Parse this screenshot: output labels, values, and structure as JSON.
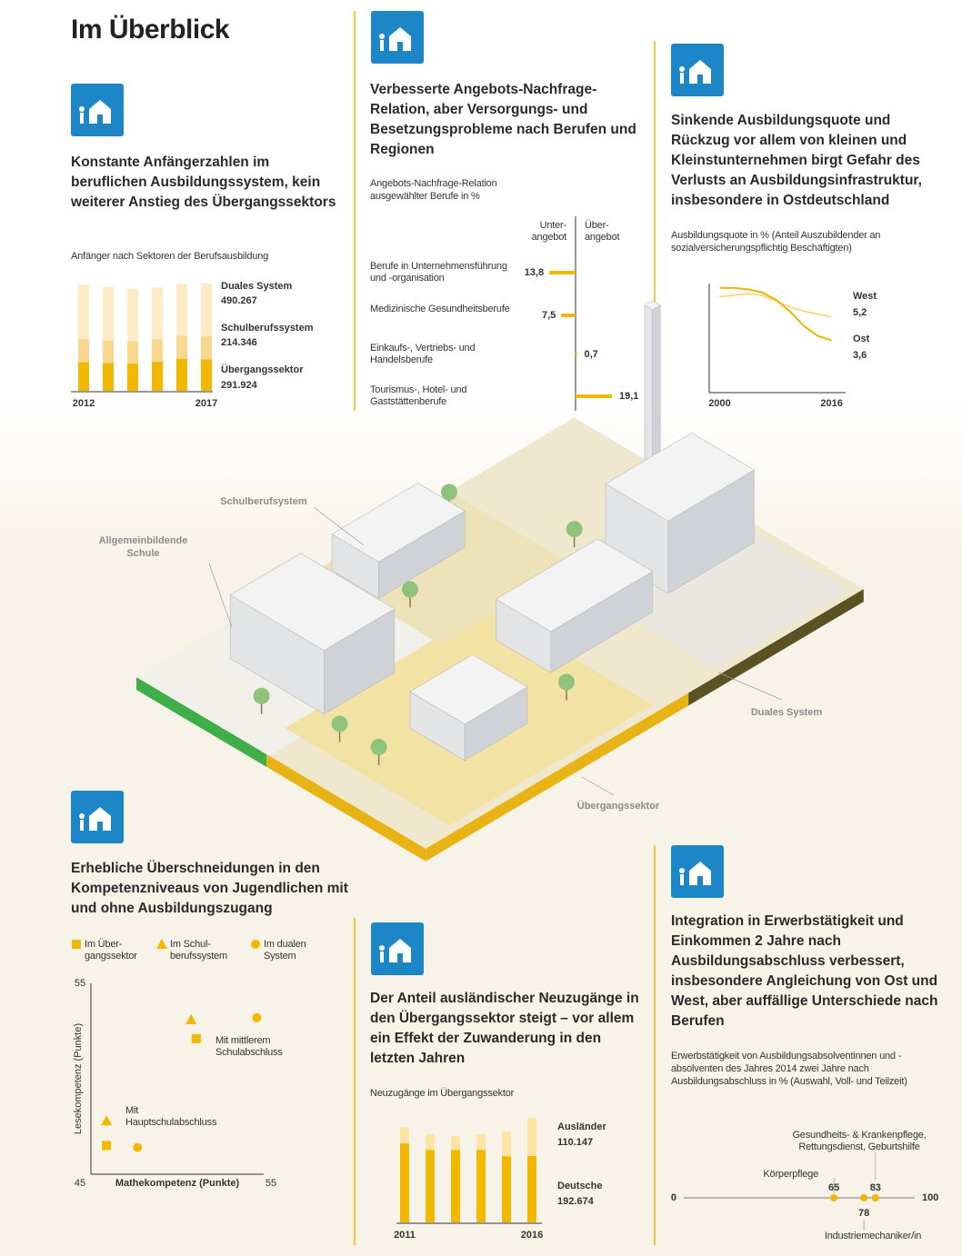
{
  "title": "Im Überblick",
  "illustration": {
    "labels": [
      "Schulberufsystem",
      "Allgemeinbildende Schule",
      "Duales System",
      "Übergangssektor"
    ]
  },
  "chart_data": [
    {
      "type": "bar",
      "stacked": true,
      "title": "Konstante Anfängerzahlen im beruflichen Ausbildungssystem, kein weiterer Anstieg des Übergangssektors",
      "subtitle": "Anfänger nach Sektoren der Berufsausbildung",
      "categories": [
        "2012",
        null,
        null,
        null,
        null,
        "2017"
      ],
      "series": [
        {
          "name": "Übergangssektor",
          "color": "#f2b800",
          "values": [
            267000,
            259000,
            253000,
            270000,
            298000,
            291924
          ],
          "value_labels": [
            null,
            null,
            null,
            null,
            null,
            "291.924"
          ]
        },
        {
          "name": "Schulberufssystem",
          "color": "#f8d88e",
          "values": [
            215000,
            212000,
            210000,
            209000,
            215000,
            214346
          ],
          "value_labels": [
            null,
            null,
            null,
            null,
            null,
            "214.346"
          ]
        },
        {
          "name": "Duales System",
          "color": "#fcebc4",
          "values": [
            505000,
            495000,
            482000,
            480000,
            481000,
            490267
          ],
          "value_labels": [
            null,
            null,
            null,
            null,
            null,
            "490.267"
          ]
        }
      ]
    },
    {
      "type": "bar",
      "orientation": "horizontal",
      "title": "Verbesserte Angebots-Nachfrage-Relation, aber Versorgungs- und Besetzungsprobleme nach Berufen und Regionen",
      "subtitle": "Angebots-Nachfrage-Relation ausgewählter Berufe in %",
      "categories": [
        "Berufe in Unternehmensführung und -organisation",
        "Medizinische Gesundheitsberufe",
        "Einkaufs-, Vertriebs- und Handelsberufe",
        "Tourismus-, Hotel- und Gaststättenberufe"
      ],
      "series": [
        {
          "name": "Unter- angebot",
          "color": "#f2b800",
          "values": [
            13.8,
            7.5,
            null,
            null
          ],
          "value_labels": [
            "13,8",
            "7,5",
            null,
            null
          ]
        },
        {
          "name": "Über- angebot",
          "color": "#f2b800",
          "values": [
            null,
            null,
            0.7,
            19.1
          ],
          "value_labels": [
            null,
            null,
            "0,7",
            "19,1"
          ]
        }
      ]
    },
    {
      "type": "line",
      "title": "Sinkende Ausbildungsquote und Rückzug vor allem von kleinen und Kleinstunternehmen birgt Gefahr des Verlusts an Ausbildungsinfrastruktur, insbesondere in Ostdeutschland",
      "subtitle": "Ausbildungsquote in % (Anteil Auszubildender an sozialversicherungspflichtig Beschäftigten)",
      "x": [
        2000,
        2002,
        2004,
        2006,
        2008,
        2010,
        2012,
        2014,
        2016
      ],
      "xlim": [
        1998.5,
        2018
      ],
      "xticks": [
        2000,
        2016
      ],
      "ylim": [
        0,
        7.5
      ],
      "series": [
        {
          "name": "West",
          "color": "#f7d98a",
          "values": [
            6.6,
            6.7,
            6.8,
            6.7,
            6.3,
            5.9,
            5.6,
            5.4,
            5.2
          ],
          "value_labels": [
            null,
            null,
            null,
            null,
            null,
            null,
            null,
            null,
            "5,2"
          ]
        },
        {
          "name": "Ost",
          "color": "#f0b400",
          "values": [
            7.2,
            7.2,
            7.1,
            6.9,
            6.4,
            5.6,
            4.6,
            3.9,
            3.6
          ],
          "value_labels": [
            null,
            null,
            null,
            null,
            null,
            null,
            null,
            null,
            "3,6"
          ]
        }
      ]
    },
    {
      "type": "scatter",
      "title": "Erhebliche Überschneidungen in den Kompetenzniveaus von Jugendlichen mit und ohne Ausbildungszugang",
      "xlabel": "Mathekompetenz (Punkte)",
      "ylabel": "Lesekompetenz (Punkte)",
      "xlim": [
        45,
        55
      ],
      "ylim": [
        45,
        55
      ],
      "xticks": [
        45,
        55
      ],
      "yticks": [
        55
      ],
      "annotations": [
        "Mit mittlerem Schulabschluss",
        "Mit Hauptschulabschluss"
      ],
      "series": [
        {
          "name": "Im Über- gangssektor",
          "color": "#f2b800",
          "marker": "square",
          "x": [
            51.1,
            45.9
          ],
          "values": [
            52.1,
            46.5
          ]
        },
        {
          "name": "Im Schul- berufssystem",
          "color": "#f2b800",
          "marker": "triangle",
          "x": [
            50.8,
            45.9
          ],
          "values": [
            53.1,
            47.8
          ]
        },
        {
          "name": "Im dualen System",
          "color": "#f2b800",
          "marker": "circle",
          "x": [
            54.6,
            47.7
          ],
          "values": [
            53.2,
            46.4
          ]
        }
      ]
    },
    {
      "type": "bar",
      "stacked": true,
      "title": "Der Anteil ausländischer Neuzugänge in den Übergangssektor steigt – vor allem ein Effekt der Zuwanderung in den letzten Jahren",
      "subtitle": "Neuzugänge im Übergangssektor",
      "categories": [
        "2011",
        null,
        null,
        null,
        null,
        "2016"
      ],
      "series": [
        {
          "name": "Deutsche",
          "color": "#f2b800",
          "values": [
            229000,
            210000,
            210000,
            210000,
            192000,
            192674
          ],
          "value_labels": [
            null,
            null,
            null,
            null,
            null,
            "192.674"
          ]
        },
        {
          "name": "Ausländer",
          "color": "#fce4a5",
          "values": [
            47000,
            45000,
            40000,
            45000,
            71000,
            110147
          ],
          "value_labels": [
            null,
            null,
            null,
            null,
            null,
            "110.147"
          ]
        }
      ]
    },
    {
      "type": "dot",
      "title": "Integration in Erwerbstätigkeit und Einkommen 2 Jahre nach Ausbildungsabschluss verbessert, insbesondere Angleichung von Ost und West, aber auffällige Unterschiede nach Berufen",
      "subtitle": "Erwerbstätigkeit von Ausbildungsabsolventinnen und -absolventen des Jahres 2014 zwei Jahre nach Ausbildungsabschluss in % (Auswahl, Voll- und Teilzeit)",
      "categories": [
        "Körperpflege",
        "Industriemechaniker/in",
        "Gesundheits- & Krankenpflege, Rettungsdienst, Geburtshilfe"
      ],
      "values": [
        65,
        78,
        83
      ],
      "color": "#f2b800",
      "xlim": [
        0,
        100
      ],
      "xticks": [
        0,
        100
      ]
    }
  ]
}
